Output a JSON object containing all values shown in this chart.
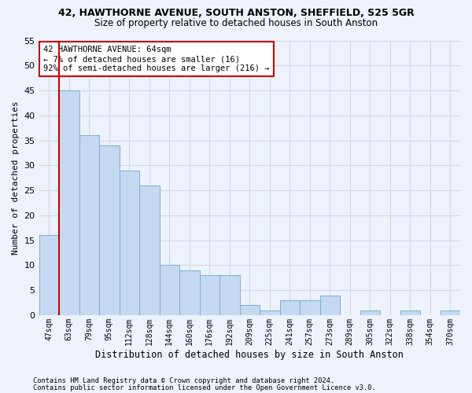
{
  "title1": "42, HAWTHORNE AVENUE, SOUTH ANSTON, SHEFFIELD, S25 5GR",
  "title2": "Size of property relative to detached houses in South Anston",
  "xlabel": "Distribution of detached houses by size in South Anston",
  "ylabel": "Number of detached properties",
  "bin_labels": [
    "47sqm",
    "63sqm",
    "79sqm",
    "95sqm",
    "112sqm",
    "128sqm",
    "144sqm",
    "160sqm",
    "176sqm",
    "192sqm",
    "209sqm",
    "225sqm",
    "241sqm",
    "257sqm",
    "273sqm",
    "289sqm",
    "305sqm",
    "322sqm",
    "338sqm",
    "354sqm",
    "370sqm"
  ],
  "bar_values": [
    16,
    45,
    36,
    34,
    29,
    26,
    10,
    9,
    8,
    8,
    2,
    1,
    3,
    3,
    4,
    0,
    1,
    0,
    1,
    0,
    1
  ],
  "bar_color": "#c5d9f0",
  "bar_edge_color": "#7bafd4",
  "vline_x": 0.5,
  "vline_color": "#cc0000",
  "annotation_text": "42 HAWTHORNE AVENUE: 64sqm\n← 7% of detached houses are smaller (16)\n92% of semi-detached houses are larger (216) →",
  "annotation_box_color": "#ffffff",
  "annotation_box_edge_color": "#cc0000",
  "ylim": [
    0,
    55
  ],
  "yticks": [
    0,
    5,
    10,
    15,
    20,
    25,
    30,
    35,
    40,
    45,
    50,
    55
  ],
  "grid_color": "#d0d8e8",
  "bg_color": "#edf2fb",
  "footer1": "Contains HM Land Registry data © Crown copyright and database right 2024.",
  "footer2": "Contains public sector information licensed under the Open Government Licence v3.0."
}
